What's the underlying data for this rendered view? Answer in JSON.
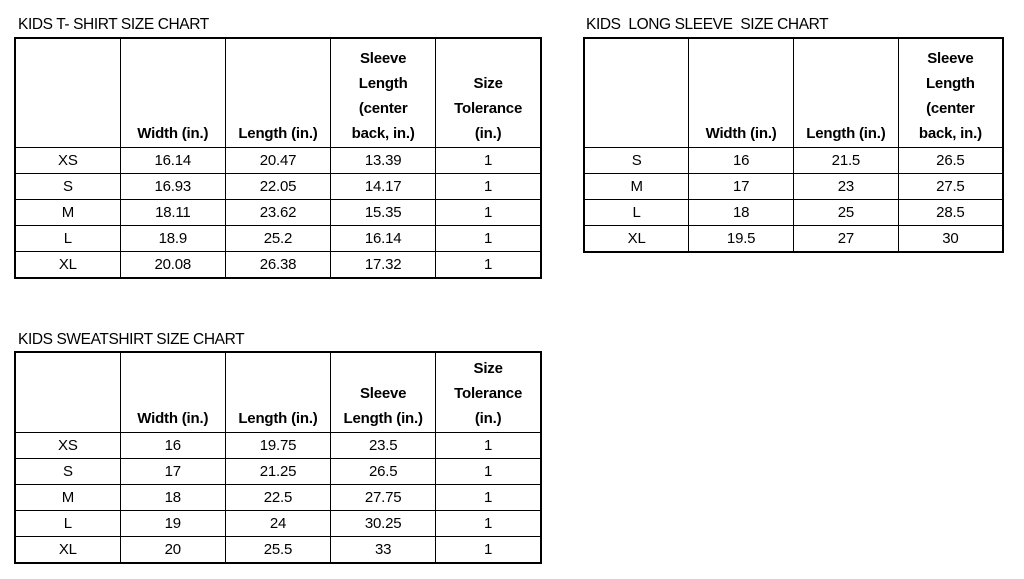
{
  "tables": [
    {
      "id": "tshirt",
      "title": "KIDS T- SHIRT SIZE CHART",
      "headers": [
        "",
        "Width (in.)",
        "Length (in.)",
        "Sleeve\nLength\n(center\nback, in.)",
        "Size\nTolerance\n(in.)"
      ],
      "rows": [
        [
          "XS",
          "16.14",
          "20.47",
          "13.39",
          "1"
        ],
        [
          "S",
          "16.93",
          "22.05",
          "14.17",
          "1"
        ],
        [
          "M",
          "18.11",
          "23.62",
          "15.35",
          "1"
        ],
        [
          "L",
          "18.9",
          "25.2",
          "16.14",
          "1"
        ],
        [
          "XL",
          "20.08",
          "26.38",
          "17.32",
          "1"
        ]
      ]
    },
    {
      "id": "longsleeve",
      "title": "KIDS  LONG SLEEVE  SIZE CHART",
      "headers": [
        "",
        "Width (in.)",
        "Length (in.)",
        "Sleeve\nLength\n(center\nback, in.)"
      ],
      "rows": [
        [
          "S",
          "16",
          "21.5",
          "26.5"
        ],
        [
          "M",
          "17",
          "23",
          "27.5"
        ],
        [
          "L",
          "18",
          "25",
          "28.5"
        ],
        [
          "XL",
          "19.5",
          "27",
          "30"
        ]
      ]
    },
    {
      "id": "sweatshirt",
      "title": "KIDS SWEATSHIRT SIZE CHART",
      "headers": [
        "",
        "Width (in.)",
        "Length (in.)",
        "Sleeve\nLength (in.)",
        "Size\nTolerance\n(in.)"
      ],
      "rows": [
        [
          "XS",
          "16",
          "19.75",
          "23.5",
          "1"
        ],
        [
          "S",
          "17",
          "21.25",
          "26.5",
          "1"
        ],
        [
          "M",
          "18",
          "22.5",
          "27.75",
          "1"
        ],
        [
          "L",
          "19",
          "24",
          "30.25",
          "1"
        ],
        [
          "XL",
          "20",
          "25.5",
          "33",
          "1"
        ]
      ]
    }
  ]
}
